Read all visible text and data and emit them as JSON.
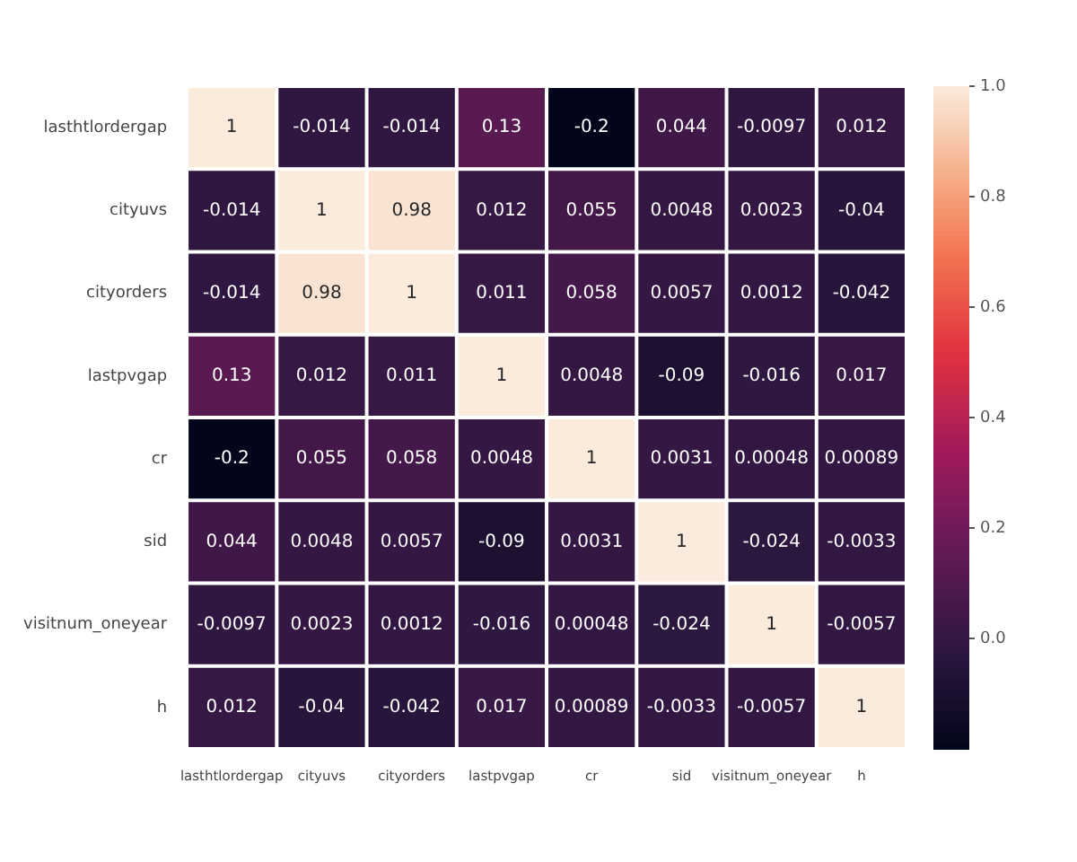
{
  "chart_data": {
    "type": "heatmap",
    "categories": [
      "lasthtlordergap",
      "cityuvs",
      "cityorders",
      "lastpvgap",
      "cr",
      "sid",
      "visitnum_oneyear",
      "h"
    ],
    "y_categories": [
      "lasthtlordergap",
      "cityuvs",
      "cityorders",
      "lastpvgap",
      "cr",
      "sid",
      "visitnum_oneyear",
      "h"
    ],
    "cells": [
      [
        1,
        -0.014,
        -0.014,
        0.13,
        -0.2,
        0.044,
        -0.0097,
        0.012
      ],
      [
        -0.014,
        1,
        0.98,
        0.012,
        0.055,
        0.0048,
        0.0023,
        -0.04
      ],
      [
        -0.014,
        0.98,
        1,
        0.011,
        0.058,
        0.0057,
        0.0012,
        -0.042
      ],
      [
        0.13,
        0.012,
        0.011,
        1,
        0.0048,
        -0.09,
        -0.016,
        0.017
      ],
      [
        -0.2,
        0.055,
        0.058,
        0.0048,
        1,
        0.0031,
        0.00048,
        0.00089
      ],
      [
        0.044,
        0.0048,
        0.0057,
        -0.09,
        0.0031,
        1,
        -0.024,
        -0.0033
      ],
      [
        -0.0097,
        0.0023,
        0.0012,
        -0.016,
        0.00048,
        -0.024,
        1,
        -0.0057
      ],
      [
        0.012,
        -0.04,
        -0.042,
        0.017,
        0.00089,
        -0.0033,
        -0.0057,
        1
      ]
    ],
    "clim": [
      -0.2,
      1
    ],
    "cticks": [
      {
        "value": 0,
        "label": "0.0"
      },
      {
        "value": 0.2,
        "label": "0.2"
      },
      {
        "value": 0.4,
        "label": "0.4"
      },
      {
        "value": 0.6,
        "label": "0.6"
      },
      {
        "value": 0.8,
        "label": "0.8"
      },
      {
        "value": 1,
        "label": "1.0"
      }
    ],
    "data_labels": true
  }
}
